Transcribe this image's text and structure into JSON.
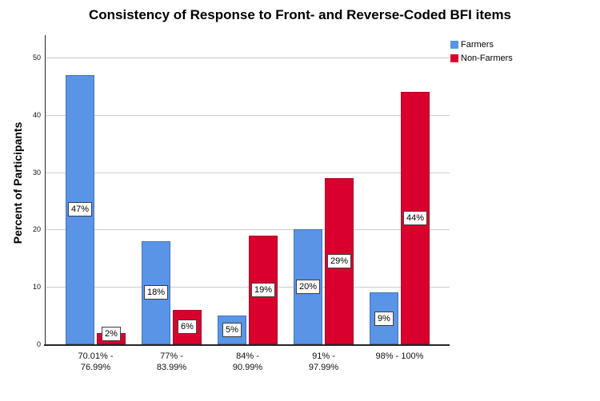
{
  "chart_data": {
    "type": "bar",
    "title": "Consistency of Response to Front- and Reverse-Coded BFI items",
    "ylabel": "Percent of Participants",
    "xlabel": "",
    "categories": [
      "70.01% -\n76.99%",
      "77% -\n83.99%",
      "84% -\n90.99%",
      "91% -\n97.99%",
      "98% - 100%"
    ],
    "series": [
      {
        "name": "Farmers",
        "color": "#5994E6",
        "values": [
          47,
          18,
          5,
          20,
          9
        ],
        "value_labels": [
          "47%",
          "18%",
          "5%",
          "20%",
          "9%"
        ]
      },
      {
        "name": "Non-Farmers",
        "color": "#D9002D",
        "values": [
          2,
          6,
          19,
          29,
          44
        ],
        "value_labels": [
          "2%",
          "6%",
          "19%",
          "29%",
          "44%"
        ]
      }
    ],
    "ylim": [
      0,
      50
    ],
    "yticks": [
      0,
      10,
      20,
      30,
      40,
      50
    ],
    "grid": true,
    "legend_position": "top-right",
    "bar_value_labels": true,
    "colors": {
      "axis": "#262626",
      "gridline": "#CDCDCD",
      "label_box_border": "#3b3b3b",
      "label_box_fill": "#ffffff"
    }
  }
}
